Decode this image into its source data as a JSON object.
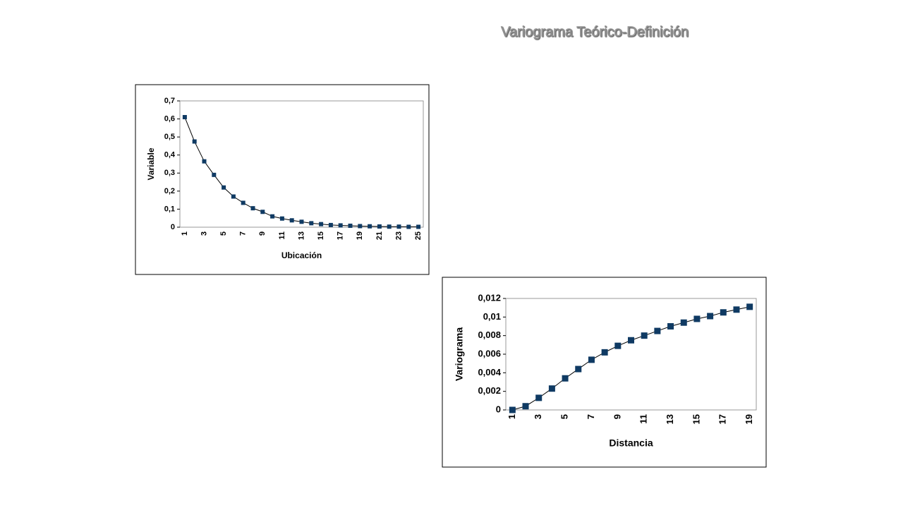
{
  "title": "Variograma Teórico-Definición",
  "chart_data": [
    {
      "type": "line",
      "y_label": "Variable",
      "x_label": "Ubicación",
      "color": "#0f3a63",
      "categories": [
        "1",
        null,
        "3",
        null,
        "5",
        null,
        "7",
        null,
        "9",
        null,
        "11",
        null,
        "13",
        null,
        "15",
        null,
        "17",
        null,
        "19",
        null,
        "21",
        null,
        "23",
        null,
        "25"
      ],
      "values": [
        0.61,
        0.475,
        0.365,
        0.29,
        0.22,
        0.17,
        0.135,
        0.105,
        0.085,
        0.06,
        0.048,
        0.038,
        0.03,
        0.022,
        0.017,
        0.012,
        0.01,
        0.008,
        0.006,
        0.005,
        0.004,
        0.003,
        0.003,
        0.002,
        0.002
      ],
      "ylim": [
        0,
        0.7
      ],
      "yticks": [
        0,
        {
          "value": 0.1,
          "label": "0,1"
        },
        {
          "value": 0.2,
          "label": "0,2"
        },
        {
          "value": 0.3,
          "label": "0,3"
        },
        {
          "value": 0.4,
          "label": "0,4"
        },
        {
          "value": 0.5,
          "label": "0,5"
        },
        {
          "value": 0.6,
          "label": "0,6"
        },
        {
          "value": 0.7,
          "label": "0,7"
        }
      ]
    },
    {
      "type": "line",
      "y_label": "Variograma",
      "x_label": "Distancia",
      "color": "#0f3a63",
      "categories": [
        "1",
        null,
        "3",
        null,
        "5",
        null,
        "7",
        null,
        "9",
        null,
        "11",
        null,
        "13",
        null,
        "15",
        null,
        "17",
        null,
        "19"
      ],
      "values": [
        0,
        0.0004,
        0.0013,
        0.0023,
        0.0034,
        0.0044,
        0.0054,
        0.0062,
        0.0069,
        0.0075,
        0.008,
        0.0085,
        0.009,
        0.0094,
        0.0098,
        0.0101,
        0.0105,
        0.0108,
        0.0111
      ],
      "ylim": [
        0,
        0.012
      ],
      "yticks": [
        0,
        {
          "value": 0.002,
          "label": "0,002"
        },
        {
          "value": 0.004,
          "label": "0,004"
        },
        {
          "value": 0.006,
          "label": "0,006"
        },
        {
          "value": 0.008,
          "label": "0,008"
        },
        {
          "value": 0.01,
          "label": "0,01"
        },
        {
          "value": 0.012,
          "label": "0,012"
        }
      ]
    }
  ]
}
